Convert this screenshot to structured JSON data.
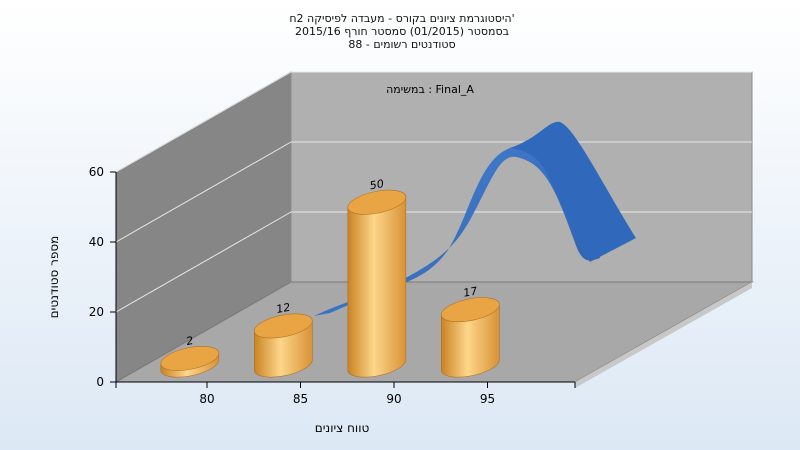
{
  "chart_data": {
    "type": "bar",
    "title_lines": [
      "היסטוגרמת ציונים בקורס - מעבדה לפיסיקה 2ח'",
      "בסמסטר  (01/2015)  סמסטר חורף 2015/16",
      "סטודנטים רשומים - 88"
    ],
    "annotation": "במשימה : Final_A",
    "xlabel": "טווח ציונים",
    "ylabel": "מספר סטודנטים",
    "categories": [
      "80",
      "85",
      "90",
      "95"
    ],
    "values": [
      2,
      12,
      50,
      17
    ],
    "y_ticks": [
      "0",
      "20",
      "40",
      "60"
    ],
    "ylim": [
      0,
      60
    ],
    "grid": true,
    "colors": {
      "bar_light": "#fdd68a",
      "bar_mid": "#f0ae52",
      "bar_dark": "#c98324",
      "curve": "#3a73c8",
      "curve_dark": "#2e5fa8",
      "back_wall": "#b0b0b0",
      "side_wall": "#868686",
      "floor": "#a8a8a8",
      "background_top": "#ffffff",
      "background_bottom": "#dce8f5"
    }
  }
}
